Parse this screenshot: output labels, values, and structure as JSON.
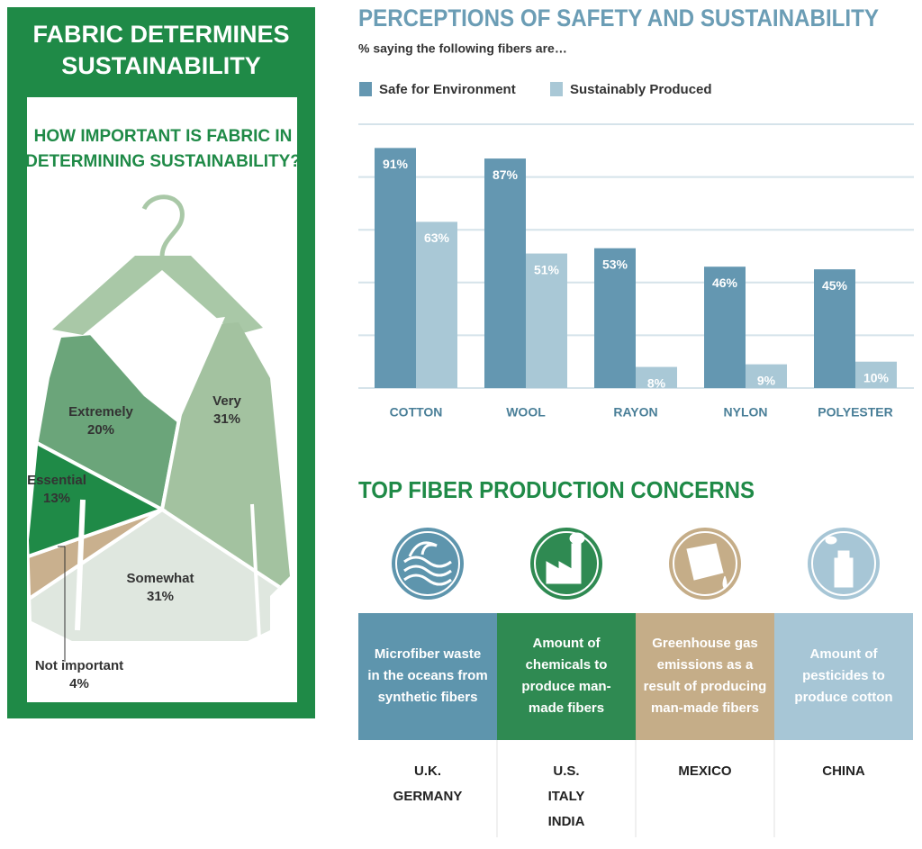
{
  "left_panel": {
    "title": [
      "FABRIC DETERMINES",
      "SUSTAINABILITY"
    ]
  },
  "chart_data": [
    {
      "type": "bar",
      "title": "PERCEPTIONS OF SAFETY AND SUSTAINABILITY",
      "subtitle": "% saying the following fibers are…",
      "categories": [
        "COTTON",
        "WOOL",
        "RAYON",
        "NYLON",
        "POLYESTER"
      ],
      "series": [
        {
          "name": "Safe for Environment",
          "color": "#6497b1",
          "values": [
            91,
            87,
            53,
            46,
            45
          ],
          "value_labels": [
            "91%",
            "87%",
            "53%",
            "46%",
            "45%"
          ]
        },
        {
          "name": "Sustainably Produced",
          "color": "#a9c8d6",
          "values": [
            63,
            51,
            8,
            9,
            10
          ],
          "value_labels": [
            "63%",
            "51%",
            "8%",
            "9%",
            "10%"
          ]
        }
      ],
      "ylim": [
        0,
        100
      ],
      "yticks": [
        0,
        20,
        40,
        60,
        80,
        100
      ],
      "grid": true
    },
    {
      "type": "pie",
      "title": [
        "HOW IMPORTANT IS FABRIC IN",
        "DETERMINING SUSTAINABILITY?"
      ],
      "categories": [
        "Extremely",
        "Very",
        "Somewhat",
        "Not important",
        "Essential"
      ],
      "values": [
        20,
        31,
        31,
        4,
        13
      ],
      "value_labels": [
        "20%",
        "31%",
        "31%",
        "4%",
        "13%"
      ],
      "colors": [
        "#6ba57a",
        "#a3c2a0",
        "#dfe7df",
        "#c9b08e",
        "#1f8a47"
      ]
    }
  ],
  "concerns": {
    "title": "TOP FIBER PRODUCTION CONCERNS",
    "items": [
      {
        "color": "#5e95ad",
        "text": [
          "Microfiber waste",
          "in the oceans from",
          "synthetic fibers"
        ],
        "countries": [
          "U.K.",
          "GERMANY"
        ]
      },
      {
        "color": "#2f8a52",
        "text": [
          "Amount of",
          "chemicals to",
          "produce man-",
          "made fibers"
        ],
        "countries": [
          "U.S.",
          "ITALY",
          "INDIA"
        ]
      },
      {
        "color": "#c5ad88",
        "text": [
          "Greenhouse gas",
          "emissions as a",
          "result of producing",
          "man-made fibers"
        ],
        "countries": [
          "MEXICO"
        ]
      },
      {
        "color": "#a7c6d6",
        "text": [
          "Amount of",
          "pesticides to",
          "produce cotton"
        ],
        "countries": [
          "CHINA"
        ]
      }
    ]
  }
}
